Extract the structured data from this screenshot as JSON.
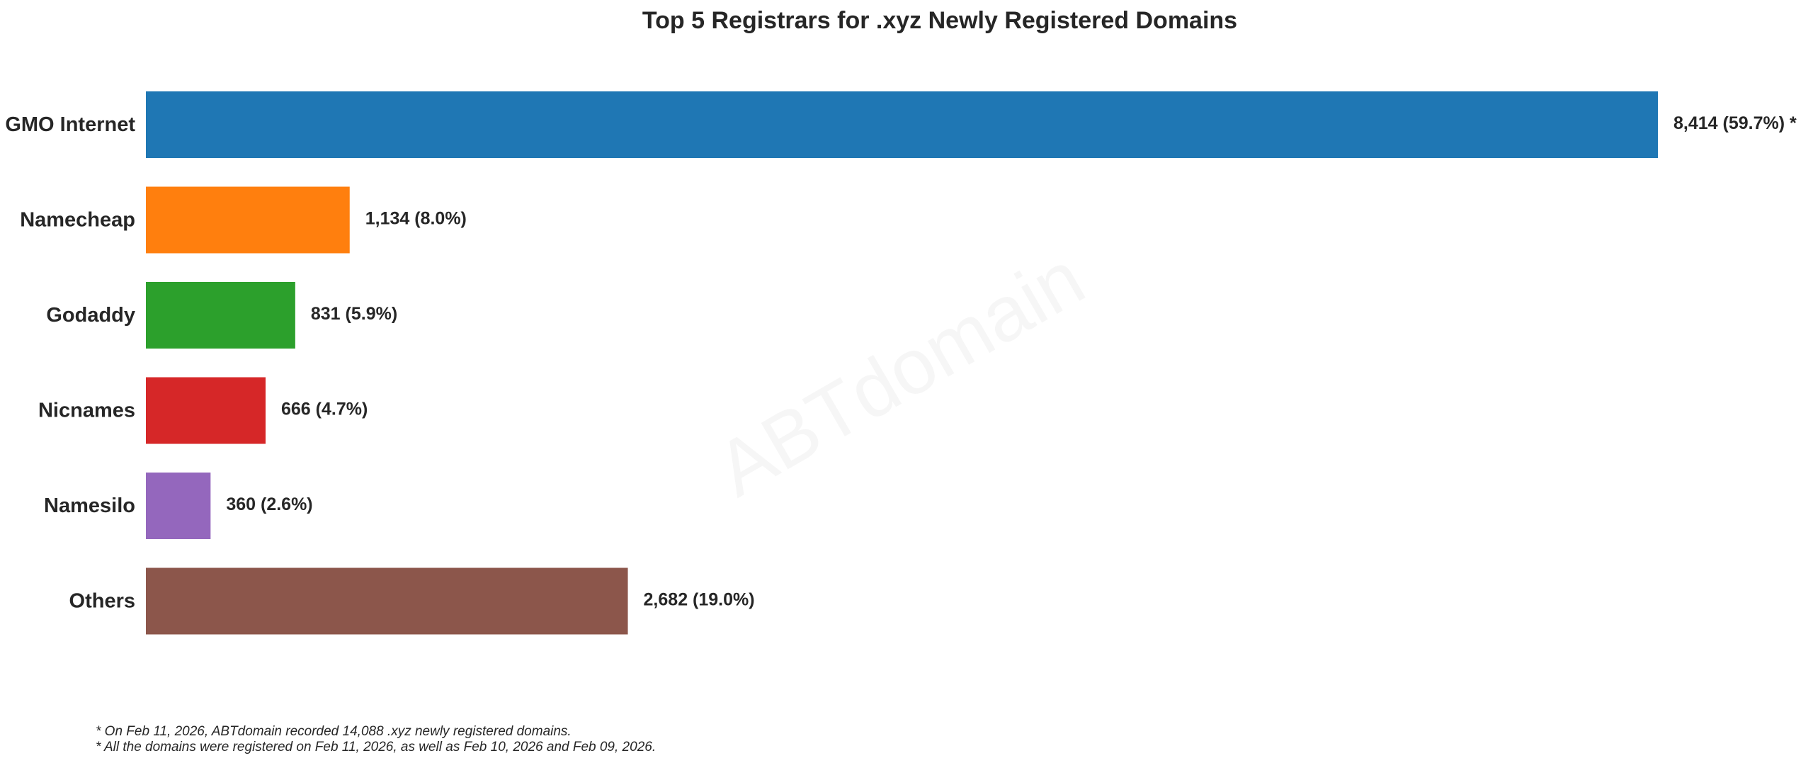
{
  "chart_data": {
    "type": "bar",
    "orientation": "horizontal",
    "title": "Top 5 Registrars for .xyz Newly Registered Domains",
    "categories": [
      "GMO Internet",
      "Namecheap",
      "Godaddy",
      "Nicnames",
      "Namesilo",
      "Others"
    ],
    "values": [
      8414,
      1134,
      831,
      666,
      360,
      2682
    ],
    "value_labels": [
      "8,414 (59.7%) *",
      "1,134 (8.0%)",
      "831 (5.9%)",
      "666 (4.7%)",
      "360 (2.6%)",
      "2,682 (19.0%)"
    ],
    "colors": [
      "#1f77b4",
      "#ff7f0e",
      "#2ca02c",
      "#d62728",
      "#9467bd",
      "#8c564b"
    ],
    "xlim": [
      0,
      8414
    ],
    "xlabel": "",
    "ylabel": "",
    "grid": false,
    "watermark": "ABTdomain"
  },
  "footnotes": [
    "* On Feb 11, 2026, ABTdomain recorded 14,088 .xyz newly registered domains.",
    "* All the domains were registered on Feb 11, 2026, as well as Feb 10, 2026 and Feb 09, 2026."
  ]
}
